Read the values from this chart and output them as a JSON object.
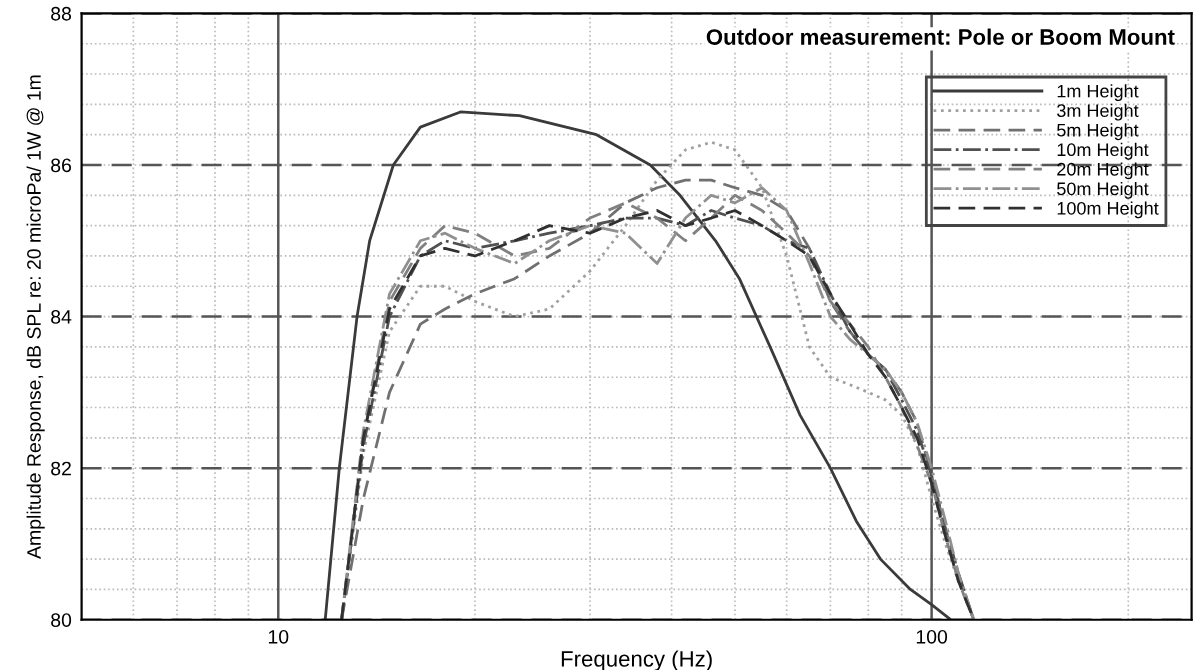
{
  "chart_data": {
    "type": "line",
    "title": "Outdoor measurement: Pole or Boom Mount",
    "xlabel": "Frequency (Hz)",
    "ylabel": "Amplitude Response, dB SPL re: 20 microPa/ 1W @ 1m",
    "log": "x",
    "xlim": [
      5,
      250
    ],
    "xticks": [
      10,
      100
    ],
    "ylim": [
      80,
      88
    ],
    "yticks": [
      80,
      82,
      84,
      86,
      88
    ],
    "grid": true,
    "legend": "top right",
    "series": [
      {
        "name": "1m Height",
        "color": "#3a3a3a",
        "line_style": "solid",
        "x": [
          11.8,
          12.4,
          13.2,
          13.8,
          15.0,
          16.5,
          19.0,
          23.4,
          30.7,
          37.1,
          41.2,
          46.7,
          50.8,
          56.6,
          62.9,
          70,
          76.7,
          83.5,
          92.8,
          100,
          107
        ],
        "values": [
          80,
          82,
          84,
          85,
          86,
          86.5,
          86.7,
          86.65,
          86.4,
          86,
          85.6,
          85,
          84.5,
          83.6,
          82.7,
          82,
          81.3,
          80.8,
          80.4,
          80.2,
          80
        ]
      },
      {
        "name": "3m Height",
        "color": "#a0a0a0",
        "line_style": "dotted",
        "values": [
          80,
          82.2,
          83.8,
          84.4,
          84.4,
          84.2,
          84.0,
          84.1,
          84.6,
          85.2,
          85.8,
          86.2,
          86.3,
          86.2,
          85.7,
          84.8,
          83.6,
          83.2,
          83.1,
          83.0,
          82.9,
          82.7,
          82.3,
          81.6,
          81.0,
          80.5,
          80.0
        ]
      },
      {
        "name": "5m Height",
        "color": "#707070",
        "line_style": "dashed",
        "values": [
          80,
          81.6,
          83.0,
          83.9,
          84.1,
          84.3,
          84.5,
          84.8,
          85.1,
          85.5,
          85.7,
          85.8,
          85.8,
          85.7,
          85.6,
          85.4,
          84.9,
          84.2,
          83.8,
          83.5,
          83.3,
          83.0,
          82.6,
          81.9,
          81.2,
          80.6,
          80.0
        ]
      },
      {
        "name": "10m Height",
        "color": "#505050",
        "line_style": "dashdot",
        "values": [
          80,
          82.3,
          84.0,
          84.8,
          85.0,
          84.9,
          85.0,
          85.1,
          85.2,
          85.3,
          85.3,
          85.2,
          85.4,
          85.3,
          85.2,
          85.0,
          84.9,
          84.3,
          83.8,
          83.5,
          83.3,
          82.9,
          82.5,
          81.9,
          81.2,
          80.6,
          80.0
        ]
      },
      {
        "name": "20m Height",
        "color": "#808080",
        "line_style": "dashed",
        "values": [
          80,
          82.4,
          84.2,
          84.9,
          85.2,
          85.1,
          84.8,
          84.9,
          85.3,
          85.5,
          85.3,
          85.0,
          85.3,
          85.6,
          85.4,
          85.1,
          84.8,
          84.2,
          83.9,
          83.6,
          83.2,
          82.8,
          82.3,
          81.8,
          81.1,
          80.5,
          80.0
        ]
      },
      {
        "name": "50m Height",
        "color": "#909090",
        "line_style": "dashdot",
        "values": [
          80,
          82.5,
          84.3,
          85.0,
          85.1,
          84.9,
          84.7,
          85.0,
          85.2,
          85.1,
          84.7,
          85.3,
          85.6,
          85.5,
          85.7,
          85.4,
          84.7,
          84.0,
          83.7,
          83.5,
          83.3,
          83.0,
          82.6,
          82.0,
          81.3,
          80.6,
          80.0
        ]
      },
      {
        "name": "100m Height",
        "color": "#303030",
        "line_style": "dashed",
        "values": [
          80,
          82.4,
          84.1,
          84.8,
          84.9,
          84.8,
          85.0,
          85.2,
          85.1,
          85.3,
          85.4,
          85.2,
          85.3,
          85.4,
          85.2,
          85.0,
          84.8,
          84.3,
          83.9,
          83.5,
          83.2,
          82.8,
          82.4,
          81.8,
          81.1,
          80.5,
          80.0
        ]
      }
    ],
    "x": [
      12.5,
      13.5,
      14.8,
      16.5,
      18,
      20,
      23,
      26,
      30,
      34,
      38,
      42,
      46,
      50,
      55,
      60,
      65,
      70,
      75,
      80,
      85,
      90,
      95,
      100,
      105,
      110,
      116
    ]
  }
}
